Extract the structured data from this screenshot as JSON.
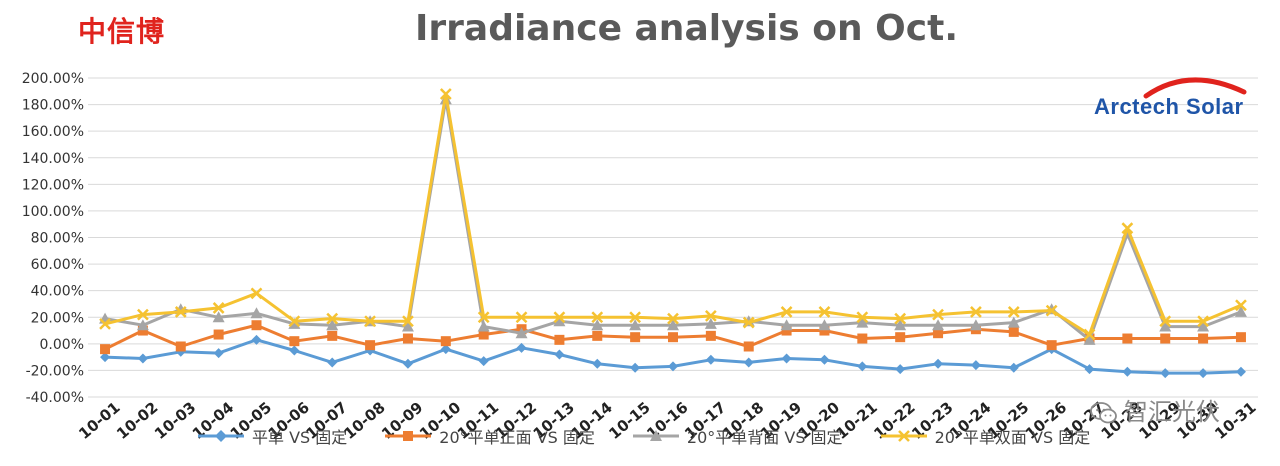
{
  "brand_label": "中信博",
  "logo_text": "Arctech Solar",
  "watermark_text": "智汇光伏",
  "colors": {
    "s1": "#5b9bd5",
    "s2": "#ed7d31",
    "s3": "#a5a5a5",
    "s4": "#f5c231",
    "brand": "#e0231d",
    "logo": "#1f55a8",
    "grid": "#d9d9d9"
  },
  "chart_data": {
    "type": "line",
    "title": "Irradiance analysis on Oct.",
    "xlabel": "",
    "ylabel": "",
    "ylim": [
      -40,
      200
    ],
    "ytick_step": 20,
    "yticks": [
      "-40.00%",
      "-20.00%",
      "0.00%",
      "20.00%",
      "40.00%",
      "60.00%",
      "80.00%",
      "100.00%",
      "120.00%",
      "140.00%",
      "160.00%",
      "180.00%",
      "200.00%"
    ],
    "grid": true,
    "legend": "bottom",
    "categories": [
      "10-01",
      "10-02",
      "10-03",
      "10-04",
      "10-05",
      "10-06",
      "10-07",
      "10-08",
      "10-09",
      "10-10",
      "10-11",
      "10-12",
      "10-13",
      "10-14",
      "10-15",
      "10-16",
      "10-17",
      "10-18",
      "10-19",
      "10-20",
      "10-21",
      "10-22",
      "10-23",
      "10-24",
      "10-25",
      "10-26",
      "10-27",
      "10-28",
      "10-29",
      "10-30",
      "10-31"
    ],
    "series": [
      {
        "name": "平单 VS 固定",
        "marker": "diamond",
        "color": "#5b9bd5",
        "values": [
          -10,
          -11,
          -6,
          -7,
          3,
          -5,
          -14,
          -5,
          -15,
          -4,
          -13,
          -3,
          -8,
          -15,
          -18,
          -17,
          -12,
          -14,
          -11,
          -12,
          -17,
          -19,
          -15,
          -16,
          -18,
          -4,
          -19,
          -21,
          -22,
          -22,
          -21
        ]
      },
      {
        "name": "20°平单正面 VS 固定",
        "marker": "square",
        "color": "#ed7d31",
        "values": [
          -4,
          10,
          -2,
          7,
          14,
          2,
          6,
          -1,
          4,
          2,
          7,
          11,
          3,
          6,
          5,
          5,
          6,
          -2,
          10,
          10,
          4,
          5,
          8,
          11,
          9,
          -1,
          4,
          4,
          4,
          4,
          5
        ]
      },
      {
        "name": "20°平单背面 VS 固定",
        "marker": "triangle",
        "color": "#a5a5a5",
        "values": [
          19,
          14,
          26,
          20,
          23,
          15,
          14,
          17,
          13,
          184,
          13,
          8,
          17,
          14,
          14,
          14,
          15,
          17,
          14,
          14,
          16,
          14,
          14,
          14,
          16,
          26,
          3,
          83,
          13,
          13,
          24
        ]
      },
      {
        "name": "20°平单双面 VS 固定",
        "marker": "x",
        "color": "#f5c231",
        "values": [
          15,
          22,
          24,
          27,
          38,
          17,
          19,
          17,
          17,
          188,
          20,
          20,
          20,
          20,
          20,
          19,
          21,
          16,
          24,
          24,
          20,
          19,
          22,
          24,
          24,
          25,
          7,
          87,
          17,
          17,
          29
        ]
      }
    ]
  }
}
